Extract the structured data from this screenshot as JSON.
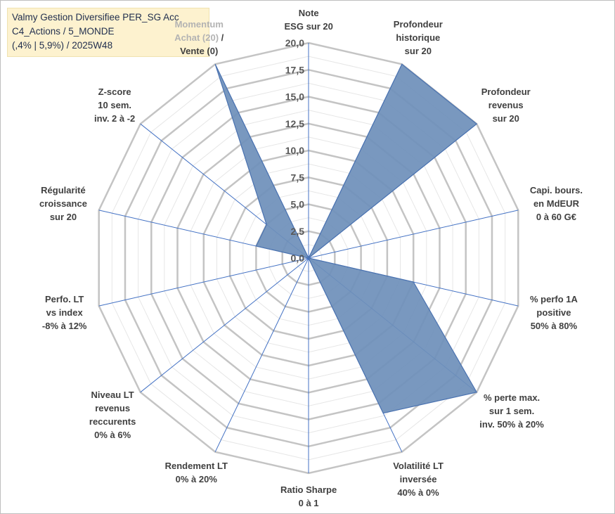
{
  "title_lines": [
    "Valmy Gestion Diversifiee PER_SG Acc",
    "C4_Actions / 5_MONDE",
    "(,4% | 5,9%) / 2025W48"
  ],
  "chart_data": {
    "type": "radar",
    "title": "Valmy Gestion Diversifiee PER_SG Acc C4_Actions / 5_MONDE (,4% | 5,9%) / 2025W48",
    "rlim": [
      0,
      20
    ],
    "ticks": [
      "0,0",
      "2,5",
      "5,0",
      "7,5",
      "10,0",
      "12,5",
      "15,0",
      "17,5",
      "20,0"
    ],
    "tick_values": [
      0,
      2.5,
      5,
      7.5,
      10,
      12.5,
      15,
      17.5,
      20
    ],
    "grid": true,
    "colors": {
      "fill": "#6e8fba",
      "stroke": "#4a72b0",
      "spoke": "#4472c4",
      "ring": "#c4c4c4",
      "minor_ring": "#e6e6e6"
    },
    "categories": [
      {
        "lines": [
          "Note",
          "ESG sur 20"
        ]
      },
      {
        "lines": [
          "Profondeur",
          "historique",
          "sur 20"
        ]
      },
      {
        "lines": [
          "Profondeur",
          "revenus",
          "sur 20"
        ]
      },
      {
        "lines": [
          "Capi. bours.",
          "en MdEUR",
          "0 à 60 G€"
        ]
      },
      {
        "lines": [
          "% perfo 1A",
          "positive",
          "50% à 80%"
        ]
      },
      {
        "lines": [
          "% perte max.",
          "sur 1 sem.",
          "inv. 50% à 20%"
        ]
      },
      {
        "lines": [
          "Volatilité LT",
          "inversée",
          "40% à 0%"
        ]
      },
      {
        "lines": [
          "Ratio Sharpe",
          "0 à 1"
        ]
      },
      {
        "lines": [
          "Rendement LT",
          "0% à 20%"
        ]
      },
      {
        "lines": [
          "Niveau LT",
          "revenus",
          "reccurents",
          "0% à 6%"
        ]
      },
      {
        "lines": [
          "Perfo. LT",
          "vs index",
          "-8% à 12%"
        ]
      },
      {
        "lines": [
          "Régularité",
          "croissance",
          "sur 20"
        ]
      },
      {
        "lines": [
          "Z-score",
          "10 sem.",
          "inv. 2 à -2"
        ]
      },
      {
        "lines": [
          "Momentum",
          "Achat (20) /",
          "Vente (0)"
        ],
        "muted_parts": [
          "Momentum",
          "Achat (20)"
        ]
      }
    ],
    "series": [
      {
        "values": [
          0,
          20,
          20,
          0,
          10,
          20,
          16,
          0,
          0,
          0,
          0,
          5,
          5,
          20
        ]
      }
    ]
  }
}
